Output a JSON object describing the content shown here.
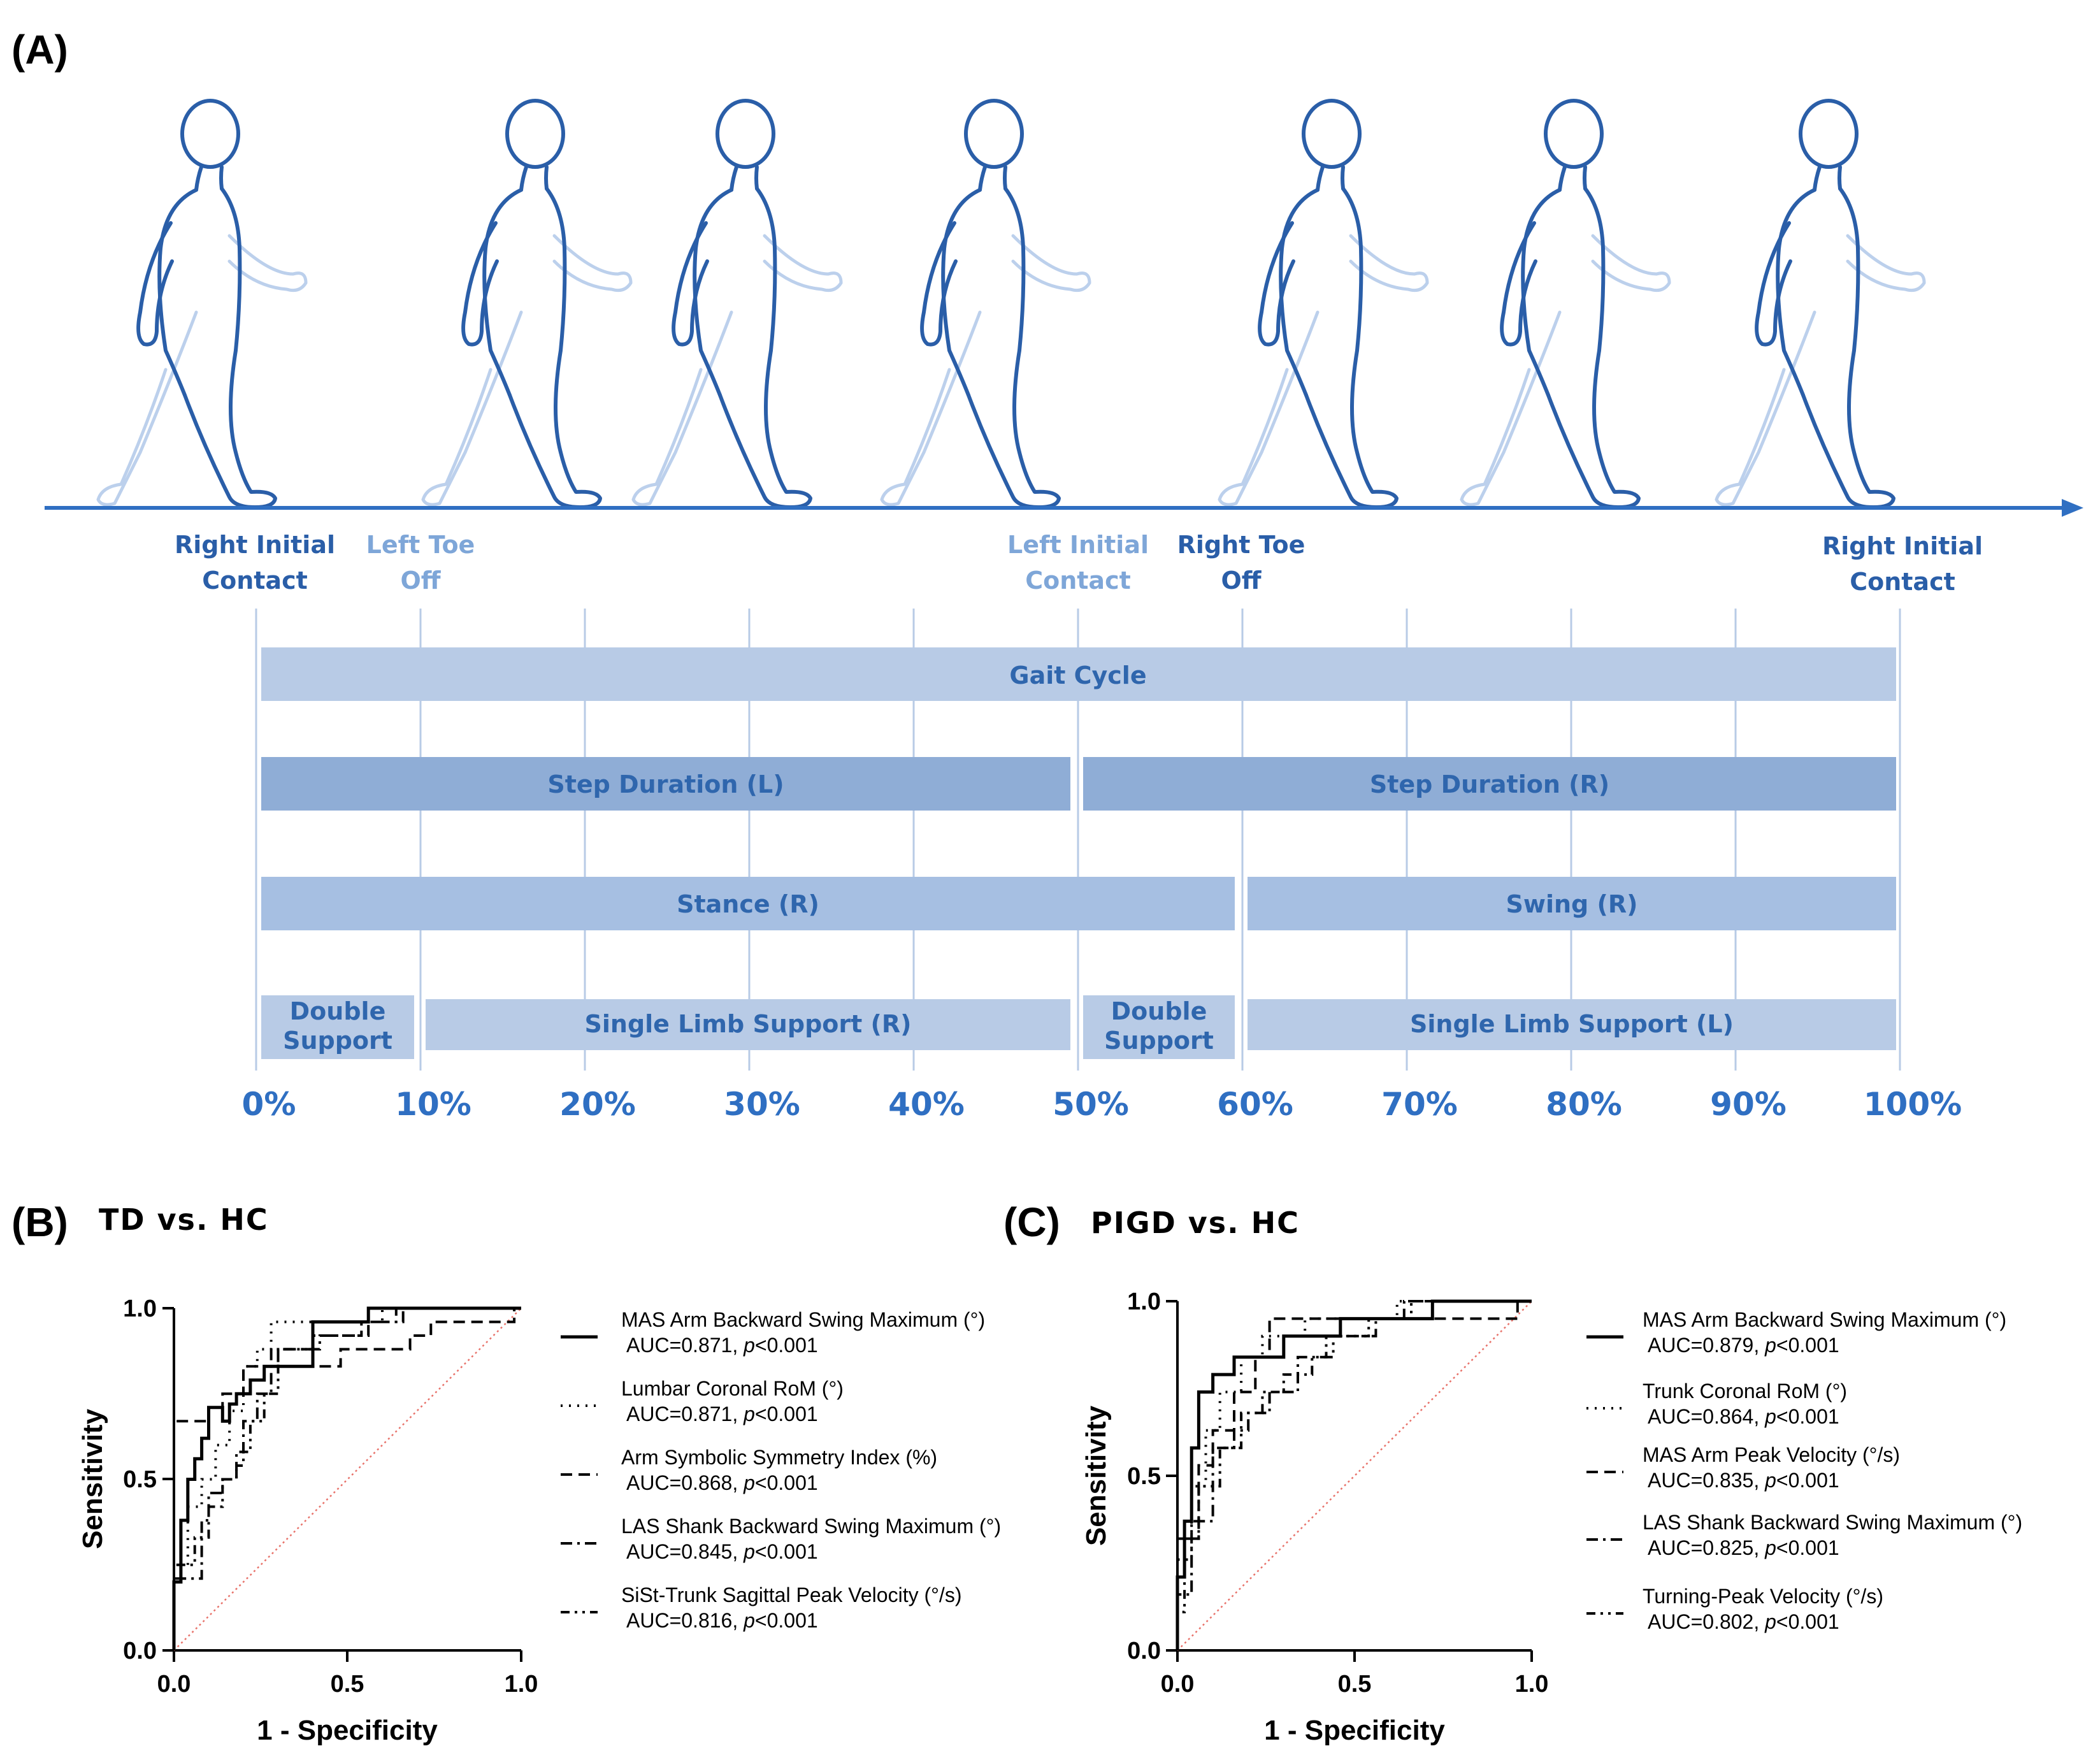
{
  "panel_a": {
    "letter": "(A)",
    "events": [
      {
        "label_line1": "Right Initial",
        "label_line2": "Contact",
        "tone": "dark"
      },
      {
        "label_line1": "Left Toe",
        "label_line2": "Off",
        "tone": "light"
      },
      {
        "label_line1": "Left Initial",
        "label_line2": "Contact",
        "tone": "light"
      },
      {
        "label_line1": "Right Toe",
        "label_line2": "Off",
        "tone": "dark"
      },
      {
        "label_line1": "Right Initial",
        "label_line2": "Contact",
        "tone": "dark"
      }
    ],
    "bars": {
      "gait_cycle": "Gait Cycle",
      "step_left": "Step Duration (L)",
      "step_right": "Step Duration (R)",
      "stance_right": "Stance (R)",
      "swing_right": "Swing (R)",
      "double_support_1_line1": "Double",
      "double_support_1_line2": "Support",
      "single_limb_right": "Single Limb Support (R)",
      "double_support_2_line1": "Double",
      "double_support_2_line2": "Support",
      "single_limb_left": "Single Limb Support (L)"
    },
    "percent_ticks": [
      "0%",
      "10%",
      "20%",
      "30%",
      "40%",
      "50%",
      "60%",
      "70%",
      "80%",
      "90%",
      "100%"
    ],
    "colors": {
      "axis": "#2f6fc2",
      "figure_dark": "#2a5ea8",
      "figure_light": "#9fbde4",
      "bar_light": "#b8cbe6",
      "bar_dark": "#8fadd6",
      "label_light": "#7ea6d8"
    }
  },
  "chart_data": [
    {
      "type": "line",
      "panel_letter": "(B)",
      "title": "TD vs. HC",
      "xlabel": "1 - Specificity",
      "ylabel": "Sensitivity",
      "xlim": [
        0,
        1
      ],
      "ylim": [
        0,
        1
      ],
      "x_ticks": [
        "0.0",
        "0.5",
        "1.0"
      ],
      "y_ticks": [
        "0.0",
        "0.5",
        "1.0"
      ],
      "reference_line": {
        "color": "#e8736b",
        "points": [
          [
            0,
            0
          ],
          [
            1,
            1
          ]
        ]
      },
      "series": [
        {
          "name": "MAS Arm Backward Swing Maximum (°)",
          "auc": "AUC=0.871,",
          "p": "p<0.001",
          "dash": "solid",
          "points": [
            [
              0,
              0
            ],
            [
              0,
              0.2
            ],
            [
              0.02,
              0.2
            ],
            [
              0.02,
              0.38
            ],
            [
              0.04,
              0.38
            ],
            [
              0.04,
              0.5
            ],
            [
              0.06,
              0.5
            ],
            [
              0.06,
              0.56
            ],
            [
              0.08,
              0.56
            ],
            [
              0.08,
              0.62
            ],
            [
              0.1,
              0.62
            ],
            [
              0.1,
              0.71
            ],
            [
              0.14,
              0.71
            ],
            [
              0.14,
              0.67
            ],
            [
              0.16,
              0.67
            ],
            [
              0.16,
              0.72
            ],
            [
              0.18,
              0.72
            ],
            [
              0.18,
              0.75
            ],
            [
              0.22,
              0.75
            ],
            [
              0.22,
              0.79
            ],
            [
              0.26,
              0.79
            ],
            [
              0.26,
              0.83
            ],
            [
              0.4,
              0.83
            ],
            [
              0.4,
              0.96
            ],
            [
              0.56,
              0.96
            ],
            [
              0.56,
              1.0
            ],
            [
              1,
              1
            ]
          ]
        },
        {
          "name": "Lumbar Coronal RoM (°)",
          "auc": "AUC=0.871,",
          "p": "p<0.001",
          "dash": "dotted",
          "points": [
            [
              0,
              0
            ],
            [
              0,
              0.25
            ],
            [
              0.04,
              0.25
            ],
            [
              0.04,
              0.42
            ],
            [
              0.08,
              0.42
            ],
            [
              0.08,
              0.5
            ],
            [
              0.12,
              0.5
            ],
            [
              0.12,
              0.6
            ],
            [
              0.16,
              0.6
            ],
            [
              0.16,
              0.7
            ],
            [
              0.2,
              0.7
            ],
            [
              0.2,
              0.83
            ],
            [
              0.24,
              0.83
            ],
            [
              0.24,
              0.88
            ],
            [
              0.28,
              0.88
            ],
            [
              0.28,
              0.96
            ],
            [
              0.4,
              0.96
            ],
            [
              0.4,
              0.96
            ],
            [
              0.6,
              0.96
            ],
            [
              0.6,
              1.0
            ],
            [
              1,
              1
            ]
          ]
        },
        {
          "name": "Arm Symbolic Symmetry Index (%)",
          "auc": "AUC=0.868,",
          "p": "p<0.001",
          "dash": "dashed",
          "points": [
            [
              0,
              0
            ],
            [
              0,
              0.67
            ],
            [
              0.1,
              0.67
            ],
            [
              0.1,
              0.71
            ],
            [
              0.14,
              0.71
            ],
            [
              0.14,
              0.75
            ],
            [
              0.2,
              0.75
            ],
            [
              0.2,
              0.83
            ],
            [
              0.3,
              0.83
            ],
            [
              0.3,
              0.88
            ],
            [
              0.4,
              0.88
            ],
            [
              0.4,
              0.83
            ],
            [
              0.48,
              0.83
            ],
            [
              0.48,
              0.88
            ],
            [
              0.68,
              0.88
            ],
            [
              0.68,
              0.92
            ],
            [
              0.74,
              0.92
            ],
            [
              0.74,
              0.96
            ],
            [
              0.98,
              0.96
            ],
            [
              0.98,
              1.0
            ],
            [
              1,
              1
            ]
          ]
        },
        {
          "name": "LAS Shank Backward Swing Maximum (°)",
          "auc": "AUC=0.845,",
          "p": "p<0.001",
          "dash": "dashdot",
          "points": [
            [
              0,
              0
            ],
            [
              0,
              0.21
            ],
            [
              0.08,
              0.21
            ],
            [
              0.08,
              0.38
            ],
            [
              0.1,
              0.38
            ],
            [
              0.1,
              0.46
            ],
            [
              0.14,
              0.46
            ],
            [
              0.14,
              0.5
            ],
            [
              0.18,
              0.5
            ],
            [
              0.18,
              0.54
            ],
            [
              0.2,
              0.54
            ],
            [
              0.2,
              0.67
            ],
            [
              0.24,
              0.67
            ],
            [
              0.24,
              0.75
            ],
            [
              0.28,
              0.75
            ],
            [
              0.28,
              0.88
            ],
            [
              0.42,
              0.88
            ],
            [
              0.42,
              0.92
            ],
            [
              0.56,
              0.92
            ],
            [
              0.56,
              0.96
            ],
            [
              0.66,
              0.96
            ],
            [
              0.66,
              1.0
            ],
            [
              1,
              1
            ]
          ]
        },
        {
          "name": "SiSt-Trunk Sagittal Peak Velocity  (°/s)",
          "auc": "AUC=0.816,",
          "p": "p<0.001",
          "dash": "dashdotdot",
          "points": [
            [
              0,
              0
            ],
            [
              0,
              0.25
            ],
            [
              0.06,
              0.25
            ],
            [
              0.06,
              0.33
            ],
            [
              0.1,
              0.33
            ],
            [
              0.1,
              0.42
            ],
            [
              0.14,
              0.42
            ],
            [
              0.14,
              0.5
            ],
            [
              0.18,
              0.5
            ],
            [
              0.18,
              0.58
            ],
            [
              0.22,
              0.58
            ],
            [
              0.22,
              0.67
            ],
            [
              0.26,
              0.67
            ],
            [
              0.26,
              0.75
            ],
            [
              0.3,
              0.75
            ],
            [
              0.3,
              0.88
            ],
            [
              0.4,
              0.88
            ],
            [
              0.4,
              0.92
            ],
            [
              0.54,
              0.92
            ],
            [
              0.54,
              0.96
            ],
            [
              0.64,
              0.96
            ],
            [
              0.64,
              1.0
            ],
            [
              1,
              1
            ]
          ]
        }
      ]
    },
    {
      "type": "line",
      "panel_letter": "(C)",
      "title": "PIGD vs. HC",
      "xlabel": "1 - Specificity",
      "ylabel": "Sensitivity",
      "xlim": [
        0,
        1
      ],
      "ylim": [
        0,
        1
      ],
      "x_ticks": [
        "0.0",
        "0.5",
        "1.0"
      ],
      "y_ticks": [
        "0.0",
        "0.5",
        "1.0"
      ],
      "reference_line": {
        "color": "#e8736b",
        "points": [
          [
            0,
            0
          ],
          [
            1,
            1
          ]
        ]
      },
      "series": [
        {
          "name": "MAS Arm Backward Swing Maximum (°)",
          "auc": "AUC=0.879,",
          "p": "p<0.001",
          "dash": "solid",
          "points": [
            [
              0,
              0
            ],
            [
              0,
              0.21
            ],
            [
              0.02,
              0.21
            ],
            [
              0.02,
              0.37
            ],
            [
              0.04,
              0.37
            ],
            [
              0.04,
              0.58
            ],
            [
              0.06,
              0.58
            ],
            [
              0.06,
              0.74
            ],
            [
              0.1,
              0.74
            ],
            [
              0.1,
              0.79
            ],
            [
              0.16,
              0.79
            ],
            [
              0.16,
              0.84
            ],
            [
              0.3,
              0.84
            ],
            [
              0.3,
              0.9
            ],
            [
              0.46,
              0.9
            ],
            [
              0.46,
              0.95
            ],
            [
              0.72,
              0.95
            ],
            [
              0.72,
              1.0
            ],
            [
              1,
              1
            ]
          ]
        },
        {
          "name": "Trunk Coronal RoM (°)",
          "auc": "AUC=0.864,",
          "p": "p<0.001",
          "dash": "dotted",
          "points": [
            [
              0,
              0
            ],
            [
              0,
              0.26
            ],
            [
              0.04,
              0.26
            ],
            [
              0.04,
              0.47
            ],
            [
              0.08,
              0.47
            ],
            [
              0.08,
              0.63
            ],
            [
              0.12,
              0.63
            ],
            [
              0.12,
              0.74
            ],
            [
              0.18,
              0.74
            ],
            [
              0.18,
              0.84
            ],
            [
              0.24,
              0.84
            ],
            [
              0.24,
              0.9
            ],
            [
              0.36,
              0.9
            ],
            [
              0.36,
              0.95
            ],
            [
              0.62,
              0.95
            ],
            [
              0.62,
              1.0
            ],
            [
              1,
              1
            ]
          ]
        },
        {
          "name": "MAS Arm Peak Velocity  (°/s)",
          "auc": "AUC=0.835,",
          "p": "p<0.001",
          "dash": "dashed",
          "points": [
            [
              0,
              0
            ],
            [
              0,
              0.32
            ],
            [
              0.06,
              0.32
            ],
            [
              0.06,
              0.53
            ],
            [
              0.1,
              0.53
            ],
            [
              0.1,
              0.63
            ],
            [
              0.16,
              0.63
            ],
            [
              0.16,
              0.74
            ],
            [
              0.22,
              0.74
            ],
            [
              0.22,
              0.84
            ],
            [
              0.26,
              0.84
            ],
            [
              0.26,
              0.95
            ],
            [
              0.96,
              0.95
            ],
            [
              0.96,
              1.0
            ],
            [
              1,
              1
            ]
          ]
        },
        {
          "name": "LAS Shank Backward Swing Maximum (°)",
          "auc": "AUC=0.825,",
          "p": "p<0.001",
          "dash": "dashdot",
          "points": [
            [
              0,
              0
            ],
            [
              0,
              0.16
            ],
            [
              0.04,
              0.16
            ],
            [
              0.04,
              0.37
            ],
            [
              0.1,
              0.37
            ],
            [
              0.1,
              0.58
            ],
            [
              0.16,
              0.58
            ],
            [
              0.16,
              0.63
            ],
            [
              0.2,
              0.63
            ],
            [
              0.2,
              0.68
            ],
            [
              0.26,
              0.68
            ],
            [
              0.26,
              0.74
            ],
            [
              0.34,
              0.74
            ],
            [
              0.34,
              0.84
            ],
            [
              0.42,
              0.84
            ],
            [
              0.42,
              0.9
            ],
            [
              0.56,
              0.9
            ],
            [
              0.56,
              0.95
            ],
            [
              0.64,
              0.95
            ],
            [
              0.64,
              1.0
            ],
            [
              1,
              1
            ]
          ]
        },
        {
          "name": "Turning-Peak Velocity  (°/s)",
          "auc": "AUC=0.802,",
          "p": "p<0.001",
          "dash": "dashdotdot",
          "points": [
            [
              0,
              0
            ],
            [
              0,
              0.11
            ],
            [
              0.02,
              0.11
            ],
            [
              0.02,
              0.32
            ],
            [
              0.06,
              0.32
            ],
            [
              0.06,
              0.47
            ],
            [
              0.12,
              0.47
            ],
            [
              0.12,
              0.58
            ],
            [
              0.18,
              0.58
            ],
            [
              0.18,
              0.68
            ],
            [
              0.24,
              0.68
            ],
            [
              0.24,
              0.74
            ],
            [
              0.3,
              0.74
            ],
            [
              0.3,
              0.79
            ],
            [
              0.38,
              0.79
            ],
            [
              0.38,
              0.84
            ],
            [
              0.44,
              0.84
            ],
            [
              0.44,
              0.9
            ],
            [
              0.54,
              0.9
            ],
            [
              0.54,
              0.95
            ],
            [
              0.66,
              0.95
            ],
            [
              0.66,
              1.0
            ],
            [
              1,
              1
            ]
          ]
        }
      ]
    }
  ]
}
